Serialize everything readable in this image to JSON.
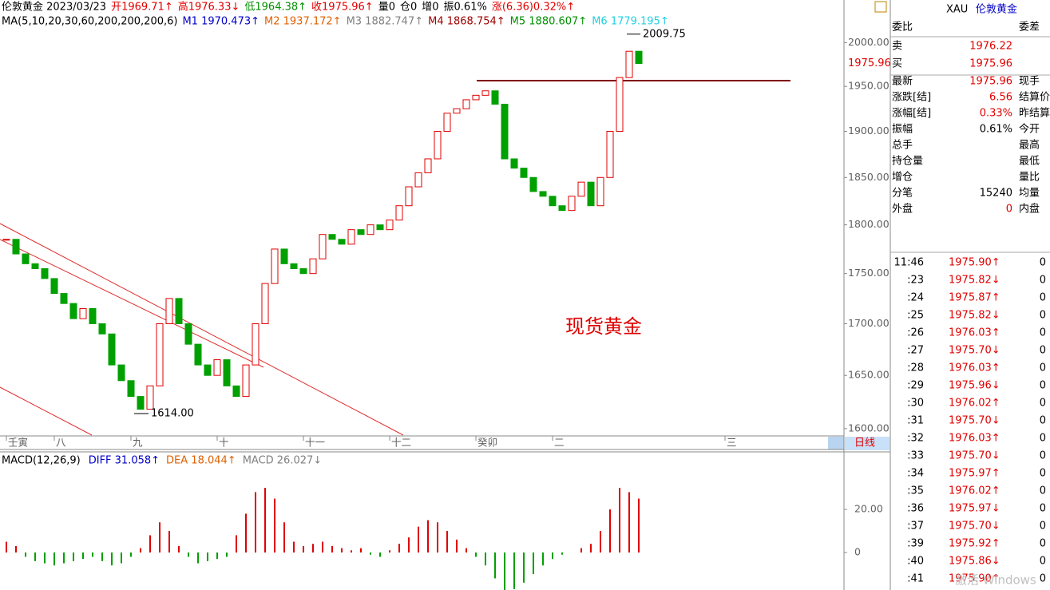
{
  "header": {
    "quote": [
      "伦敦黄金 2023/03/23",
      "开1969.71↑",
      "高1976.33↓",
      "低1964.38↑",
      "收1975.96↑",
      "量0",
      "仓0",
      "增0",
      "振0.61%",
      "涨(6.36)0.32%↑"
    ],
    "ma": [
      "MA(5,10,20,30,60,200,200,200,6)",
      "M1 1970.473↑",
      "M2 1937.172↑",
      "M3 1882.747↑",
      "M4 1868.754↑",
      "M5 1880.607↑",
      "M6 1779.195↑"
    ]
  },
  "chart_data": [
    {
      "type": "candlestick",
      "log_scale": true,
      "up_color": "#e00000",
      "down_color": "#00a000",
      "categories": [
        "壬寅",
        null,
        null,
        null,
        null,
        "八",
        null,
        null,
        null,
        null,
        null,
        null,
        null,
        "九",
        null,
        null,
        null,
        null,
        null,
        null,
        null,
        null,
        "十",
        null,
        null,
        null,
        null,
        null,
        null,
        null,
        null,
        "十一",
        null,
        null,
        null,
        null,
        null,
        null,
        null,
        null,
        "十二",
        null,
        null,
        null,
        null,
        null,
        null,
        null,
        null,
        "癸卯",
        null,
        null,
        null,
        null,
        null,
        null,
        null,
        "二",
        null,
        null,
        null,
        null,
        null,
        null,
        null,
        null,
        null,
        null,
        null,
        null,
        null,
        null,
        null,
        null,
        null,
        "三"
      ],
      "values": [
        1785,
        1770,
        1760,
        1755,
        1745,
        1730,
        1720,
        1705,
        1715,
        1700,
        1690,
        1660,
        1645,
        1630,
        1618,
        1640,
        1700,
        1725,
        1700,
        1680,
        1660,
        1650,
        1665,
        1640,
        1630,
        1660,
        1700,
        1740,
        1775,
        1760,
        1755,
        1750,
        1765,
        1790,
        1785,
        1780,
        1795,
        1790,
        1800,
        1795,
        1805,
        1820,
        1840,
        1855,
        1870,
        1900,
        1920,
        1925,
        1935,
        1940,
        1945,
        1930,
        1870,
        1860,
        1850,
        1835,
        1830,
        1820,
        1815,
        1830,
        1845,
        1820,
        1850,
        1900,
        1960,
        1990,
        1976,
        null,
        null,
        null,
        null,
        null,
        null,
        null,
        null,
        null
      ],
      "ylim": [
        1594,
        2017
      ],
      "yticks": [
        {
          "value": 2000,
          "label": "2000.00"
        },
        {
          "value": 1950,
          "label": "1950.00"
        },
        {
          "value": 1900,
          "label": "1900.00"
        },
        {
          "value": 1850,
          "label": "1850.00"
        },
        {
          "value": 1800,
          "label": "1800.00"
        },
        {
          "value": 1750,
          "label": "1750.00"
        },
        {
          "value": 1700,
          "label": "1700.00"
        },
        {
          "value": 1650,
          "label": "1650.00"
        },
        {
          "value": 1600,
          "label": "1600.00"
        }
      ],
      "high": 2009.75,
      "low": {
        "value": 1614,
        "label": "1614.00"
      },
      "last_price": 1975.96,
      "annotation": "现货黄金",
      "period": "日线"
    },
    {
      "type": "bar",
      "title": "MACD(12,26,9)",
      "legend": [
        "DIFF 31.058↑",
        "DEA 18.044↑",
        "MACD 26.027↓"
      ],
      "up_color": "#e00000",
      "down_color": "#00a000",
      "values": [
        5,
        3,
        -2,
        -4,
        -5,
        -6,
        -5,
        -4,
        -3,
        -2,
        -4,
        -6,
        -5,
        -2,
        2,
        8,
        14,
        10,
        3,
        -2,
        -5,
        -4,
        -3,
        -2,
        8,
        18,
        28,
        30,
        25,
        14,
        5,
        3,
        4,
        5,
        3,
        2,
        1,
        2,
        -1,
        -2,
        1,
        4,
        7,
        12,
        15,
        14,
        10,
        6,
        2,
        -2,
        -6,
        -12,
        -18,
        -17,
        -14,
        -10,
        -6,
        -3,
        -1,
        0,
        2,
        4,
        10,
        20,
        30,
        28,
        25,
        null,
        null,
        null,
        null,
        null,
        null,
        null,
        null,
        null
      ],
      "ylim": [
        -17.4,
        46.7
      ],
      "yticks": [
        {
          "value": 20,
          "label": "20.00"
        },
        0
      ]
    }
  ],
  "side": {
    "symbol": "XAU",
    "name": "伦敦黄金",
    "rows": [
      {
        "label": "委比",
        "label2": "委差"
      },
      {
        "label": "卖",
        "value": "1976.22"
      },
      {
        "label": "买",
        "value": "1975.96"
      },
      {
        "label": "最新",
        "value": "1975.96",
        "label2": "现手"
      },
      {
        "label": "涨跌[结]",
        "value": "6.56",
        "label2": "结算价"
      },
      {
        "label": "涨幅[结]",
        "value": "0.33%",
        "label2": "昨结算"
      },
      {
        "label": "振幅",
        "value": "0.61%",
        "label2": "今开"
      },
      {
        "label": "总手",
        "label2": "最高"
      },
      {
        "label": "持仓量",
        "label2": "最低"
      },
      {
        "label": "增仓",
        "label2": "量比"
      },
      {
        "label": "分笔",
        "value": "15240",
        "label2": "均量"
      },
      {
        "label": "外盘",
        "value": "0",
        "label2": "内盘"
      }
    ],
    "ticks": [
      [
        "11:46",
        "1975.90↑",
        "0"
      ],
      [
        ":23",
        "1975.82↓",
        "0"
      ],
      [
        ":24",
        "1975.87↑",
        "0"
      ],
      [
        ":25",
        "1975.82↓",
        "0"
      ],
      [
        ":26",
        "1976.03↑",
        "0"
      ],
      [
        ":27",
        "1975.70↓",
        "0"
      ],
      [
        ":28",
        "1976.03↑",
        "0"
      ],
      [
        ":29",
        "1975.96↓",
        "0"
      ],
      [
        ":30",
        "1976.02↑",
        "0"
      ],
      [
        ":31",
        "1975.70↓",
        "0"
      ],
      [
        ":32",
        "1976.03↑",
        "0"
      ],
      [
        ":33",
        "1975.70↓",
        "0"
      ],
      [
        ":34",
        "1975.97↑",
        "0"
      ],
      [
        ":35",
        "1976.02↑",
        "0"
      ],
      [
        ":36",
        "1975.97↓",
        "0"
      ],
      [
        ":37",
        "1975.70↓",
        "0"
      ],
      [
        ":39",
        "1975.92↑",
        "0"
      ],
      [
        ":40",
        "1975.86↓",
        "0"
      ],
      [
        ":41",
        "1975.90↑",
        "0"
      ]
    ]
  },
  "watermark": "激活 Windows"
}
